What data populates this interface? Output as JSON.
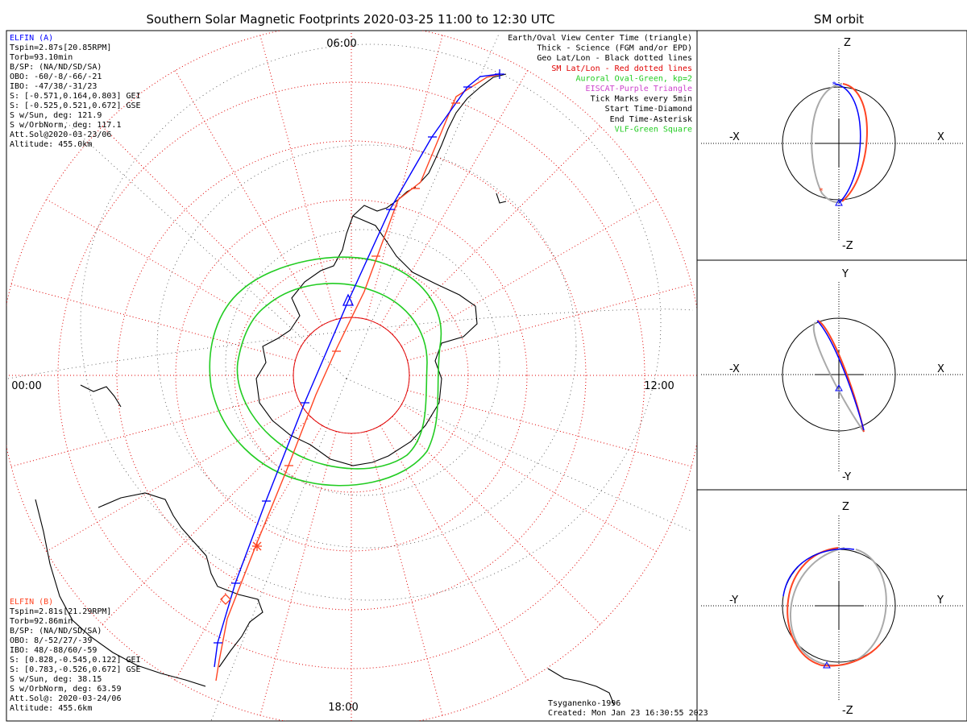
{
  "title": "Southern Solar Magnetic Footprints 2020-03-25 11:00 to 12:30 UTC",
  "orbit_title": "SM orbit",
  "mlt": {
    "top": "06:00",
    "left": "00:00",
    "right": "12:00",
    "bottom": "18:00"
  },
  "elfin_a": {
    "header": "ELFIN (A)",
    "lines": [
      "Tspin=2.87s[20.85RPM]",
      "Torb=93.10min",
      "B/SP: (NA/ND/SD/SA)",
      "OBO: -60/-8/-66/-21",
      "IBO: -47/38/-31/23",
      "S: [-0.571,0.164,0.803] GEI",
      "S: [-0.525,0.521,0.672] GSE",
      "S w/Sun, deg: 121.9",
      "S w/OrbNorm, deg: 117.1",
      "Att.Sol@2020-03-23/06",
      "Altitude: 455.0km"
    ]
  },
  "elfin_b": {
    "header": "ELFIN (B)",
    "lines": [
      "Tspin=2.81s[21.29RPM]",
      "Torb=92.86min",
      "B/SP: (NA/ND/SD/SA)",
      "OBO: 8/-52/27/-39",
      "IBO: 48/-88/60/-59",
      "S: [0.828,-0.545,0.122] GEI",
      "S: [0.783,-0.526,0.672] GSE",
      "S w/Sun, deg: 38.15",
      "S w/OrbNorm, deg: 63.59",
      "Att.Sol@: 2020-03-24/06",
      "Altitude: 455.6km"
    ]
  },
  "legend": [
    {
      "text": "Earth/Oval View Center Time (triangle)",
      "color": "#000000"
    },
    {
      "text": "Thick - Science (FGM and/or EPD)",
      "color": "#000000"
    },
    {
      "text": "Geo Lat/Lon - Black dotted lines",
      "color": "#000000"
    },
    {
      "text": "SM Lat/Lon - Red dotted lines",
      "color": "#e00000"
    },
    {
      "text": "Auroral Oval-Green, kp=2",
      "color": "#22cc22"
    },
    {
      "text": "EISCAT-Purple Triangle",
      "color": "#cc44cc"
    },
    {
      "text": "Tick Marks every 5min",
      "color": "#000000"
    },
    {
      "text": "Start Time-Diamond",
      "color": "#000000"
    },
    {
      "text": "End Time-Asterisk",
      "color": "#000000"
    },
    {
      "text": "VLF-Green Square",
      "color": "#22cc22"
    }
  ],
  "credits": {
    "model": "Tsyganenko-1996",
    "created": "Created: Mon Jan 23 16:30:55 2023"
  },
  "panels": [
    {
      "top": "Z",
      "bottom": "-Z",
      "left": "-X",
      "right": "X"
    },
    {
      "top": "Y",
      "bottom": "-Y",
      "left": "-X",
      "right": "X"
    },
    {
      "top": "Z",
      "bottom": "-Z",
      "left": "-Y",
      "right": "Y"
    }
  ],
  "colors": {
    "elfin_a": "#0000ff",
    "elfin_b": "#ff4422",
    "sm_grid": "#e00000",
    "oval": "#22cc22",
    "other_orbit": "#aaaaaa"
  }
}
